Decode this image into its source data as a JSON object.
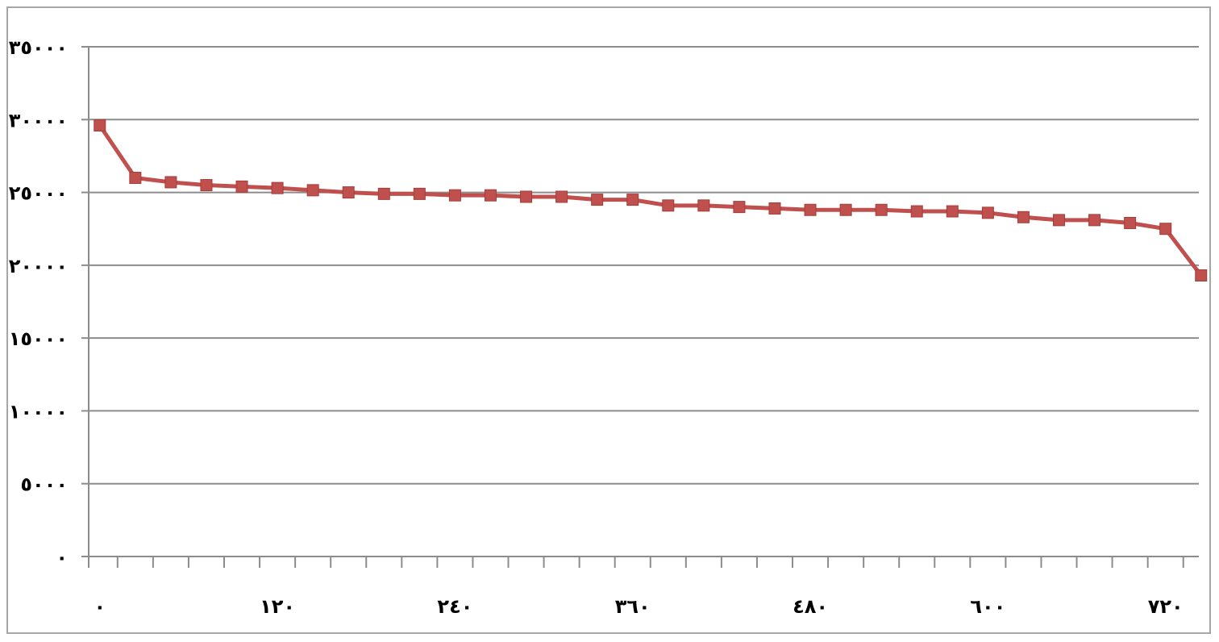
{
  "chart_data": {
    "type": "line",
    "title": "",
    "xlabel": "",
    "ylabel": "",
    "ylim": [
      0,
      35000
    ],
    "grid": "horizontal",
    "legend": "none",
    "y_ticks": [
      {
        "value": 0,
        "label": "٠"
      },
      {
        "value": 5000,
        "label": "٥٠٠٠"
      },
      {
        "value": 10000,
        "label": "١٠٠٠٠"
      },
      {
        "value": 15000,
        "label": "١٥٠٠٠"
      },
      {
        "value": 20000,
        "label": "٢٠٠٠٠"
      },
      {
        "value": 25000,
        "label": "٢٥٠٠٠"
      },
      {
        "value": 30000,
        "label": "٣٠٠٠٠"
      },
      {
        "value": 35000,
        "label": "٣٥٠٠٠"
      }
    ],
    "x_ticks": [
      {
        "value": 0,
        "label": "٠"
      },
      {
        "value": 120,
        "label": "١٢٠"
      },
      {
        "value": 240,
        "label": "٢٤٠"
      },
      {
        "value": 360,
        "label": "٣٦٠"
      },
      {
        "value": 480,
        "label": "٤٨٠"
      },
      {
        "value": 600,
        "label": "٦٠٠"
      },
      {
        "value": 720,
        "label": "٧٢٠"
      }
    ],
    "xlim": [
      -7.5,
      742.5
    ],
    "x_minor_step": 24,
    "series": [
      {
        "color": "#c0504d",
        "marker": "square",
        "x": [
          0,
          24,
          48,
          72,
          96,
          120,
          144,
          168,
          192,
          216,
          240,
          264,
          288,
          312,
          336,
          360,
          384,
          408,
          432,
          456,
          480,
          504,
          528,
          552,
          576,
          600,
          624,
          648,
          672,
          696,
          720,
          744
        ],
        "values": [
          29600,
          26000,
          25700,
          25500,
          25400,
          25300,
          25150,
          25000,
          24900,
          24900,
          24800,
          24800,
          24700,
          24700,
          24500,
          24500,
          24100,
          24100,
          24000,
          23900,
          23800,
          23800,
          23800,
          23700,
          23700,
          23600,
          23300,
          23100,
          23100,
          22900,
          22500,
          19300
        ]
      }
    ]
  }
}
